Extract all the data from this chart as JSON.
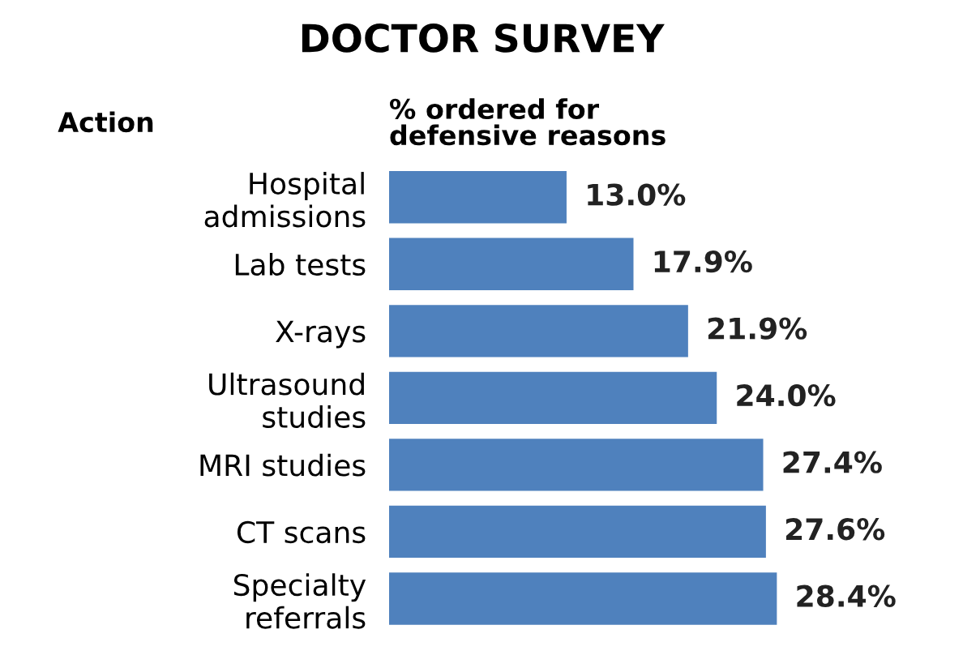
{
  "chart_data": {
    "type": "bar",
    "orientation": "horizontal",
    "title": "DOCTOR SURVEY",
    "annotations": [
      "Action",
      "% ordered for\ndefensive reasons"
    ],
    "categories": [
      "Hospital\nadmissions",
      "Lab tests",
      "X-rays",
      "Ultrasound\nstudies",
      "MRI studies",
      "CT scans",
      "Specialty\nreferrals"
    ],
    "values": [
      13.0,
      17.9,
      21.9,
      24.0,
      27.4,
      27.6,
      28.4
    ],
    "value_labels": [
      "13.0%",
      "17.9%",
      "21.9%",
      "24.0%",
      "27.4%",
      "27.6%",
      "28.4%"
    ],
    "color": "#4f81bd",
    "tick_labels": "y",
    "grid": false,
    "legend": false
  }
}
